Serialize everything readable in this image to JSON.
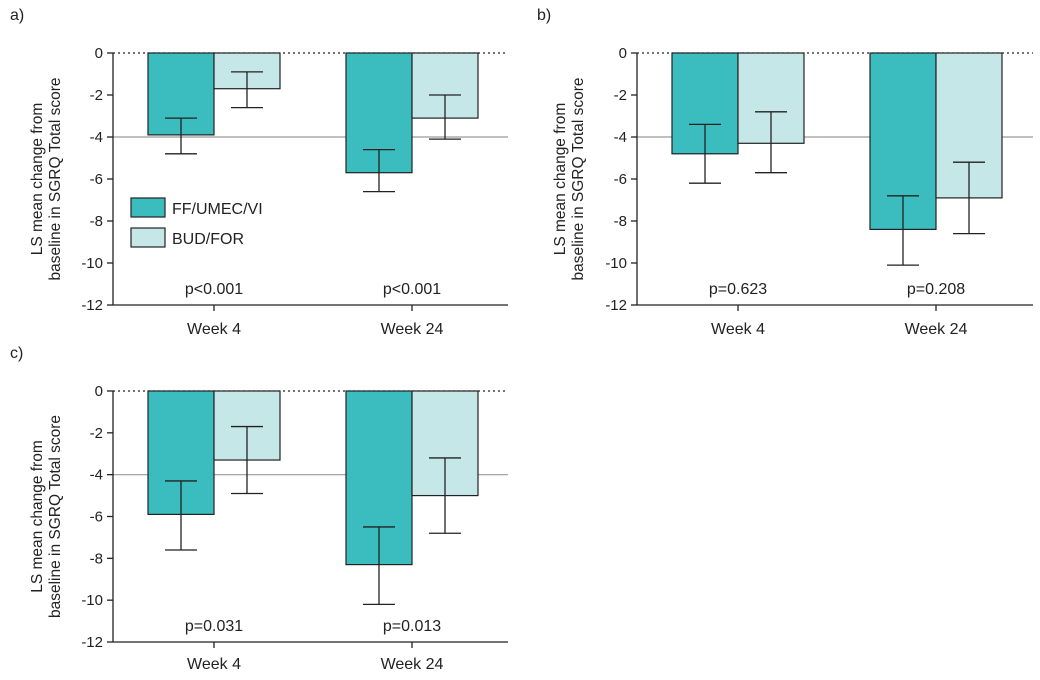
{
  "colors": {
    "ff_umec_vi": "#3bbcbf",
    "bud_for": "#c5e7e8",
    "bar_stroke": "#222222",
    "ref_line": "#9a9a9a"
  },
  "legend": {
    "items": [
      {
        "label": "FF/UMEC/VI",
        "color": "#3bbcbf"
      },
      {
        "label": "BUD/FOR",
        "color": "#c5e7e8"
      }
    ]
  },
  "chart_data": [
    {
      "panel": "a)",
      "type": "bar",
      "ylabel_line1": "LS mean change from",
      "ylabel_line2": "baseline in SGRQ Total score",
      "ylim": [
        -12,
        0
      ],
      "yticks": [
        "0",
        "-2",
        "-4",
        "-6",
        "-8",
        "-10",
        "-12"
      ],
      "ytick_values": [
        0,
        -2,
        -4,
        -6,
        -8,
        -10,
        -12
      ],
      "reference_line": -4,
      "categories": [
        "Week 4",
        "Week 24"
      ],
      "pvalues": [
        "p<0.001",
        "p<0.001"
      ],
      "series": [
        {
          "name": "FF/UMEC/VI",
          "values": [
            -3.9,
            -5.7
          ],
          "err_low": [
            -4.8,
            -6.6
          ],
          "err_high": [
            -3.1,
            -4.6
          ]
        },
        {
          "name": "BUD/FOR",
          "values": [
            -1.7,
            -3.1
          ],
          "err_low": [
            -2.6,
            -4.1
          ],
          "err_high": [
            -0.9,
            -2.0
          ]
        }
      ]
    },
    {
      "panel": "b)",
      "type": "bar",
      "ylabel_line1": "LS mean change from",
      "ylabel_line2": "baseline in SGRQ Total score",
      "ylim": [
        -12,
        0
      ],
      "yticks": [
        "0",
        "-2",
        "-4",
        "-6",
        "-8",
        "-10",
        "-12"
      ],
      "ytick_values": [
        0,
        -2,
        -4,
        -6,
        -8,
        -10,
        -12
      ],
      "reference_line": -4,
      "categories": [
        "Week 4",
        "Week 24"
      ],
      "pvalues": [
        "p=0.623",
        "p=0.208"
      ],
      "series": [
        {
          "name": "FF/UMEC/VI",
          "values": [
            -4.8,
            -8.4
          ],
          "err_low": [
            -6.2,
            -10.1
          ],
          "err_high": [
            -3.4,
            -6.8
          ]
        },
        {
          "name": "BUD/FOR",
          "values": [
            -4.3,
            -6.9
          ],
          "err_low": [
            -5.7,
            -8.6
          ],
          "err_high": [
            -2.8,
            -5.2
          ]
        }
      ]
    },
    {
      "panel": "c)",
      "type": "bar",
      "ylabel_line1": "LS mean change from",
      "ylabel_line2": "baseline in SGRQ Total score",
      "ylim": [
        -12,
        0
      ],
      "yticks": [
        "0",
        "-2",
        "-4",
        "-6",
        "-8",
        "-10",
        "-12"
      ],
      "ytick_values": [
        0,
        -2,
        -4,
        -6,
        -8,
        -10,
        -12
      ],
      "reference_line": -4,
      "categories": [
        "Week 4",
        "Week 24"
      ],
      "pvalues": [
        "p=0.031",
        "p=0.013"
      ],
      "series": [
        {
          "name": "FF/UMEC/VI",
          "values": [
            -5.9,
            -8.3
          ],
          "err_low": [
            -7.6,
            -10.2
          ],
          "err_high": [
            -4.3,
            -6.5
          ]
        },
        {
          "name": "BUD/FOR",
          "values": [
            -3.3,
            -5.0
          ],
          "err_low": [
            -4.9,
            -6.8
          ],
          "err_high": [
            -1.7,
            -3.2
          ]
        }
      ]
    }
  ]
}
